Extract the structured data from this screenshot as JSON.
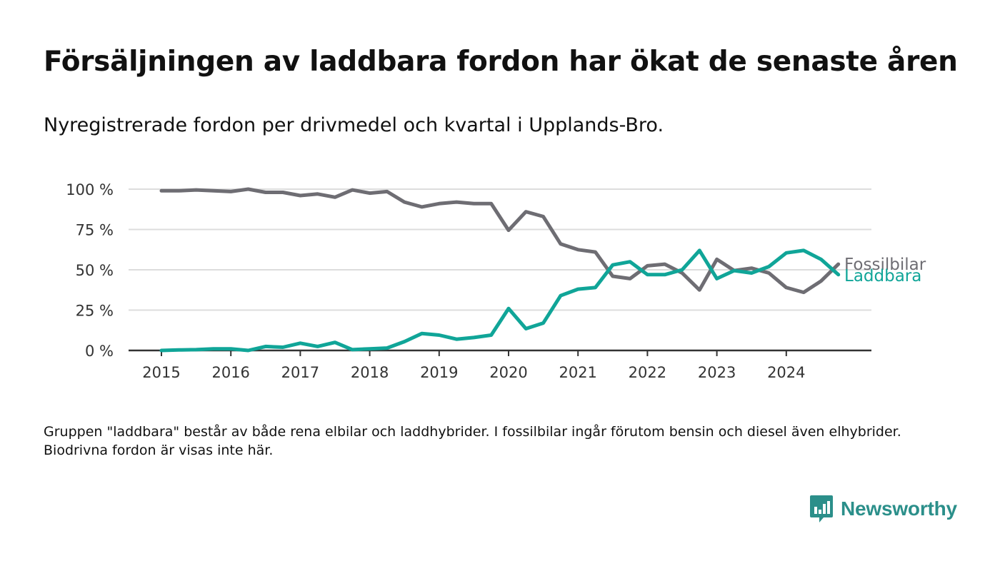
{
  "title": "Försäljningen av laddbara fordon har ökat de senaste åren",
  "subtitle": "Nyregistrerade fordon per drivmedel och kvartal i Upplands-Bro.",
  "note": "Gruppen \"laddbara\" består av både rena elbilar och laddhybrider. I fossilbilar ingår förutom bensin och diesel även elhybrider. Biodrivna fordon är visas inte här.",
  "brand": {
    "name": "Newsworthy",
    "color": "#2b8f8a"
  },
  "chart_data": {
    "type": "line",
    "xlabel": "",
    "ylabel": "",
    "ylim": [
      0,
      100
    ],
    "grid": true,
    "x_ticks": [
      "2015",
      "2016",
      "2017",
      "2018",
      "2019",
      "2020",
      "2021",
      "2022",
      "2023",
      "2024"
    ],
    "y_ticks": [
      "0 %",
      "25 %",
      "50 %",
      "75 %",
      "100 %"
    ],
    "y_tick_values": [
      0,
      25,
      50,
      75,
      100
    ],
    "x_start_year": 2015,
    "step": "quarter",
    "series": [
      {
        "name": "Fossilbilar",
        "color": "#6e6d73",
        "values": [
          99,
          99,
          99.5,
          99,
          98.5,
          100,
          98,
          98,
          96,
          97,
          95,
          99.5,
          97.5,
          98.5,
          92,
          89,
          91,
          92,
          91,
          91,
          74.5,
          86,
          83,
          66,
          62.5,
          61,
          46,
          44.5,
          52.5,
          53.5,
          48,
          37.5,
          56.5,
          49.5,
          51,
          48,
          39,
          36,
          43,
          53.5
        ]
      },
      {
        "name": "Laddbara",
        "color": "#10a598",
        "values": [
          0,
          0.3,
          0.5,
          1,
          1,
          0,
          2.5,
          2,
          4.5,
          2.5,
          5,
          0.5,
          1,
          1.5,
          5.5,
          10.5,
          9.5,
          7,
          8,
          9.5,
          26,
          13.5,
          17,
          34,
          38,
          39,
          53,
          55,
          47,
          47,
          50,
          62,
          44.5,
          49.5,
          48,
          52,
          60.5,
          62,
          56.5,
          47
        ]
      }
    ]
  }
}
